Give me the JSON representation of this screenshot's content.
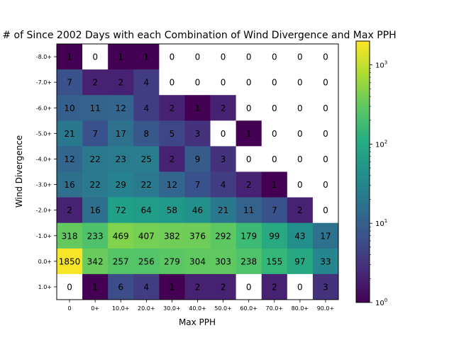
{
  "chart_data": {
    "type": "heatmap",
    "title": "# of Since 2002 Days with each Combination of Wind Divergence and Max PPH",
    "xlabel": "Max PPH",
    "ylabel": "Wind Divergence",
    "x_categories": [
      "0",
      "0+",
      "10.0+",
      "20.0+",
      "30.0+",
      "40.0+",
      "50.0+",
      "60.0+",
      "70.0+",
      "80.0+",
      "90.0+"
    ],
    "y_categories": [
      "-8.0+",
      "-7.0+",
      "-6.0+",
      "-5.0+",
      "-4.0+",
      "-3.0+",
      "-2.0+",
      "-1.0+",
      "0.0+",
      "1.0+"
    ],
    "values": [
      [
        1,
        0,
        1,
        1,
        0,
        0,
        0,
        0,
        0,
        0,
        0
      ],
      [
        7,
        2,
        2,
        4,
        0,
        0,
        0,
        0,
        0,
        0,
        0
      ],
      [
        10,
        11,
        12,
        4,
        2,
        1,
        2,
        0,
        0,
        0,
        0
      ],
      [
        21,
        7,
        17,
        8,
        5,
        3,
        0,
        1,
        0,
        0,
        0
      ],
      [
        12,
        22,
        23,
        25,
        2,
        9,
        3,
        0,
        0,
        0,
        0
      ],
      [
        16,
        22,
        29,
        22,
        12,
        7,
        4,
        2,
        1,
        0,
        0
      ],
      [
        2,
        16,
        72,
        64,
        58,
        46,
        21,
        11,
        7,
        2,
        0
      ],
      [
        318,
        233,
        469,
        407,
        382,
        376,
        292,
        179,
        99,
        43,
        17
      ],
      [
        1850,
        342,
        257,
        256,
        279,
        304,
        303,
        238,
        155,
        97,
        33
      ],
      [
        0,
        1,
        6,
        4,
        1,
        2,
        2,
        0,
        2,
        0,
        3
      ]
    ],
    "colorscale": "viridis",
    "color_scale_type": "log",
    "zero_cells_color": "#ffffff",
    "colorbar": {
      "range": [
        1,
        2000
      ],
      "tick_bases": [
        "10",
        "10",
        "10",
        "10"
      ],
      "tick_exponents": [
        "0",
        "1",
        "2",
        "3"
      ],
      "tick_values": [
        1,
        10,
        100,
        1000
      ]
    }
  }
}
